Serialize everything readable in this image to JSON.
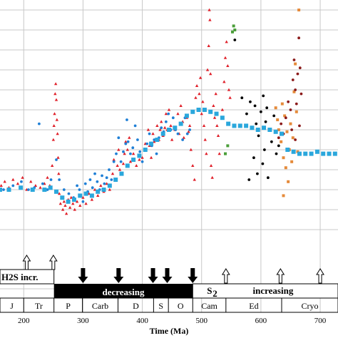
{
  "chart_data": {
    "type": "scatter",
    "xlabel": "Time (Ma)",
    "ylabel": "",
    "xlim": [
      160,
      730
    ],
    "ylim": [
      0,
      12.5
    ],
    "grid": true,
    "x_ticks": [
      200,
      300,
      400,
      500,
      600,
      700
    ],
    "series": [
      {
        "color": "#e0202a",
        "marker": "triangle",
        "points": [
          [
            162,
            3.2
          ],
          [
            168,
            3.4
          ],
          [
            175,
            3.1
          ],
          [
            182,
            3.5
          ],
          [
            190,
            3.3
          ],
          [
            198,
            3.6
          ],
          [
            205,
            3.0
          ],
          [
            212,
            3.4
          ],
          [
            220,
            3.2
          ],
          [
            228,
            3.1
          ],
          [
            235,
            3.3
          ],
          [
            240,
            3.6
          ],
          [
            244,
            3.2
          ],
          [
            248,
            4.2
          ],
          [
            250,
            5.5
          ],
          [
            251,
            6.2
          ],
          [
            252,
            6.8
          ],
          [
            253,
            7.8
          ],
          [
            254,
            8.3
          ],
          [
            255,
            7.5
          ],
          [
            256,
            6.5
          ],
          [
            257,
            5.8
          ],
          [
            258,
            4.6
          ],
          [
            259,
            3.8
          ],
          [
            260,
            2.8
          ],
          [
            262,
            2.3
          ],
          [
            264,
            2.6
          ],
          [
            266,
            2.0
          ],
          [
            268,
            2.4
          ],
          [
            270,
            2.2
          ],
          [
            272,
            1.8
          ],
          [
            275,
            2.5
          ],
          [
            278,
            2.1
          ],
          [
            280,
            2.6
          ],
          [
            283,
            2.3
          ],
          [
            286,
            2.0
          ],
          [
            290,
            2.4
          ],
          [
            295,
            2.2
          ],
          [
            300,
            2.6
          ],
          [
            305,
            2.3
          ],
          [
            310,
            2.8
          ],
          [
            315,
            2.5
          ],
          [
            320,
            3.0
          ],
          [
            325,
            2.7
          ],
          [
            330,
            3.2
          ],
          [
            335,
            2.9
          ],
          [
            340,
            3.3
          ],
          [
            345,
            3.0
          ],
          [
            350,
            3.8
          ],
          [
            352,
            4.5
          ],
          [
            355,
            3.5
          ],
          [
            358,
            4.2
          ],
          [
            360,
            5.0
          ],
          [
            362,
            4.0
          ],
          [
            365,
            3.8
          ],
          [
            368,
            4.3
          ],
          [
            370,
            4.8
          ],
          [
            372,
            5.4
          ],
          [
            375,
            5.0
          ],
          [
            378,
            5.6
          ],
          [
            380,
            4.4
          ],
          [
            385,
            4.8
          ],
          [
            390,
            4.2
          ],
          [
            395,
            4.5
          ],
          [
            400,
            4.6
          ],
          [
            405,
            5.3
          ],
          [
            410,
            6.0
          ],
          [
            412,
            5.2
          ],
          [
            415,
            4.6
          ],
          [
            418,
            5.8
          ],
          [
            420,
            5.4
          ],
          [
            425,
            6.2
          ],
          [
            428,
            5.5
          ],
          [
            430,
            6.0
          ],
          [
            432,
            6.4
          ],
          [
            435,
            5.7
          ],
          [
            438,
            6.1
          ],
          [
            440,
            6.8
          ],
          [
            442,
            6.0
          ],
          [
            445,
            7.0
          ],
          [
            448,
            6.2
          ],
          [
            450,
            5.5
          ],
          [
            455,
            6.0
          ],
          [
            460,
            6.8
          ],
          [
            462,
            5.8
          ],
          [
            465,
            7.2
          ],
          [
            468,
            6.4
          ],
          [
            470,
            5.6
          ],
          [
            475,
            6.6
          ],
          [
            478,
            5.9
          ],
          [
            480,
            6.2
          ],
          [
            482,
            5.0
          ],
          [
            485,
            4.2
          ],
          [
            488,
            3.5
          ],
          [
            490,
            7.6
          ],
          [
            492,
            8.2
          ],
          [
            494,
            7.0
          ],
          [
            496,
            7.8
          ],
          [
            498,
            8.6
          ],
          [
            500,
            6.8
          ],
          [
            502,
            7.4
          ],
          [
            504,
            6.2
          ],
          [
            506,
            5.5
          ],
          [
            508,
            4.8
          ],
          [
            510,
            9.0
          ],
          [
            512,
            10.2
          ],
          [
            513,
            12.0
          ],
          [
            514,
            11.5
          ],
          [
            515,
            8.8
          ],
          [
            516,
            4.2
          ],
          [
            518,
            3.6
          ],
          [
            520,
            7.2
          ],
          [
            522,
            6.6
          ],
          [
            524,
            7.8
          ],
          [
            526,
            6.2
          ],
          [
            528,
            5.7
          ],
          [
            530,
            4.8
          ],
          [
            535,
            7.0
          ],
          [
            538,
            8.4
          ],
          [
            540,
            9.6
          ],
          [
            542,
            10.4
          ],
          [
            544,
            9.2
          ],
          [
            546,
            8.0
          ],
          [
            548,
            7.6
          ]
        ]
      },
      {
        "color": "#1f7fd6",
        "marker": "dot",
        "points": [
          [
            166,
            3.0
          ],
          [
            182,
            3.2
          ],
          [
            196,
            3.4
          ],
          [
            208,
            3.0
          ],
          [
            218,
            3.1
          ],
          [
            226,
            6.3
          ],
          [
            232,
            3.3
          ],
          [
            240,
            3.0
          ],
          [
            246,
            3.5
          ],
          [
            255,
            4.5
          ],
          [
            260,
            3.5
          ],
          [
            268,
            3.0
          ],
          [
            276,
            2.8
          ],
          [
            284,
            2.6
          ],
          [
            290,
            3.2
          ],
          [
            294,
            3.0
          ],
          [
            300,
            2.4
          ],
          [
            304,
            3.3
          ],
          [
            308,
            2.9
          ],
          [
            312,
            3.5
          ],
          [
            316,
            3.1
          ],
          [
            320,
            3.8
          ],
          [
            324,
            3.4
          ],
          [
            328,
            3.0
          ],
          [
            332,
            3.7
          ],
          [
            336,
            3.3
          ],
          [
            340,
            3.6
          ],
          [
            344,
            4.0
          ],
          [
            348,
            3.5
          ],
          [
            352,
            4.4
          ],
          [
            356,
            4.8
          ],
          [
            360,
            5.6
          ],
          [
            364,
            4.4
          ],
          [
            368,
            4.9
          ],
          [
            372,
            5.3
          ],
          [
            374,
            6.5
          ],
          [
            376,
            5.4
          ],
          [
            380,
            4.8
          ],
          [
            384,
            5.1
          ],
          [
            388,
            6.2
          ],
          [
            392,
            5.5
          ],
          [
            396,
            4.9
          ],
          [
            400,
            4.4
          ],
          [
            404,
            5.0
          ],
          [
            408,
            5.3
          ],
          [
            412,
            5.8
          ],
          [
            416,
            5.2
          ],
          [
            420,
            5.5
          ],
          [
            424,
            4.8
          ],
          [
            428,
            5.6
          ],
          [
            432,
            6.1
          ],
          [
            436,
            5.9
          ],
          [
            440,
            6.4
          ],
          [
            444,
            6.8
          ],
          [
            448,
            6.0
          ],
          [
            452,
            6.6
          ],
          [
            456,
            6.0
          ],
          [
            460,
            5.8
          ],
          [
            464,
            6.3
          ],
          [
            468,
            5.5
          ],
          [
            472,
            6.6
          ],
          [
            476,
            5.8
          ],
          [
            480,
            6.0
          ]
        ]
      },
      {
        "color": "#000000",
        "marker": "dot",
        "points": [
          [
            556,
            10.5
          ],
          [
            568,
            7.6
          ],
          [
            576,
            6.8
          ],
          [
            582,
            7.4
          ],
          [
            586,
            6.1
          ],
          [
            588,
            4.6
          ],
          [
            590,
            7.2
          ],
          [
            592,
            6.3
          ],
          [
            596,
            5.7
          ],
          [
            600,
            6.9
          ],
          [
            604,
            7.7
          ],
          [
            606,
            5.0
          ],
          [
            608,
            6.4
          ],
          [
            610,
            7.1
          ],
          [
            614,
            6.0
          ],
          [
            618,
            5.4
          ],
          [
            622,
            6.7
          ],
          [
            626,
            4.8
          ],
          [
            630,
            5.2
          ],
          [
            594,
            3.8
          ],
          [
            612,
            3.6
          ],
          [
            603,
            4.3
          ],
          [
            580,
            3.5
          ]
        ]
      },
      {
        "color": "#e58a3a",
        "marker": "square",
        "points": [
          [
            625,
            7.1
          ],
          [
            628,
            6.5
          ],
          [
            630,
            6.0
          ],
          [
            634,
            5.4
          ],
          [
            636,
            7.3
          ],
          [
            638,
            4.6
          ],
          [
            640,
            6.7
          ],
          [
            642,
            4.1
          ],
          [
            644,
            5.9
          ],
          [
            646,
            3.4
          ],
          [
            648,
            5.0
          ],
          [
            650,
            6.3
          ],
          [
            652,
            4.4
          ],
          [
            654,
            5.6
          ],
          [
            656,
            7.9
          ],
          [
            658,
            9.3
          ],
          [
            660,
            6.9
          ],
          [
            662,
            4.9
          ],
          [
            664,
            12.0
          ],
          [
            638,
            2.7
          ]
        ]
      },
      {
        "color": "#8b1a1a",
        "marker": "dot",
        "points": [
          [
            630,
            5.6
          ],
          [
            634,
            6.3
          ],
          [
            638,
            5.8
          ],
          [
            642,
            6.6
          ],
          [
            646,
            7.4
          ],
          [
            650,
            7.0
          ],
          [
            652,
            6.0
          ],
          [
            654,
            8.5
          ],
          [
            656,
            9.5
          ],
          [
            658,
            8.0
          ],
          [
            660,
            7.3
          ],
          [
            662,
            8.8
          ],
          [
            664,
            10.6
          ],
          [
            666,
            9.1
          ],
          [
            668,
            7.8
          ],
          [
            665,
            6.2
          ],
          [
            658,
            5.5
          ]
        ]
      },
      {
        "color": "#4b9e3a",
        "marker": "square",
        "points": [
          [
            552,
            10.9
          ],
          [
            554,
            11.2
          ],
          [
            556,
            11.0
          ],
          [
            540,
            4.8
          ],
          [
            544,
            5.2
          ]
        ]
      }
    ],
    "trend": {
      "color": "#2aa7dc",
      "points": [
        [
          160,
          3.0
        ],
        [
          175,
          3.0
        ],
        [
          195,
          3.1
        ],
        [
          215,
          3.0
        ],
        [
          235,
          3.0
        ],
        [
          245,
          3.1
        ],
        [
          255,
          2.9
        ],
        [
          265,
          2.6
        ],
        [
          275,
          2.4
        ],
        [
          285,
          2.5
        ],
        [
          295,
          2.7
        ],
        [
          305,
          2.8
        ],
        [
          315,
          2.7
        ],
        [
          325,
          2.9
        ],
        [
          335,
          3.0
        ],
        [
          345,
          3.2
        ],
        [
          355,
          3.5
        ],
        [
          365,
          3.8
        ],
        [
          375,
          4.2
        ],
        [
          385,
          4.5
        ],
        [
          395,
          4.7
        ],
        [
          405,
          5.0
        ],
        [
          415,
          5.3
        ],
        [
          425,
          5.5
        ],
        [
          435,
          5.8
        ],
        [
          445,
          6.0
        ],
        [
          455,
          6.1
        ],
        [
          465,
          6.3
        ],
        [
          475,
          6.7
        ],
        [
          485,
          6.9
        ],
        [
          495,
          7.0
        ],
        [
          505,
          7.0
        ],
        [
          515,
          6.9
        ],
        [
          525,
          6.8
        ],
        [
          535,
          6.6
        ],
        [
          545,
          6.3
        ],
        [
          555,
          6.2
        ],
        [
          565,
          6.2
        ],
        [
          575,
          6.2
        ],
        [
          585,
          6.1
        ],
        [
          595,
          6.0
        ],
        [
          605,
          6.1
        ],
        [
          615,
          6.0
        ],
        [
          625,
          5.9
        ],
        [
          635,
          5.8
        ],
        [
          645,
          5.0
        ],
        [
          655,
          4.9
        ],
        [
          665,
          4.8
        ],
        [
          675,
          4.8
        ],
        [
          685,
          4.8
        ],
        [
          695,
          4.9
        ],
        [
          705,
          4.8
        ],
        [
          715,
          4.8
        ],
        [
          725,
          4.8
        ]
      ]
    },
    "annotations": {
      "h2s_label": "H2S incr.",
      "decreasing_label": "decreasing",
      "s2_label": "S",
      "s2_sub": "2",
      "increasing_label": "increasing",
      "down_arrows_x": [
        300,
        360,
        418,
        442,
        485
      ],
      "up_arrows_x_left": [
        205,
        250
      ],
      "up_arrows_x_right": [
        541,
        633,
        700
      ]
    },
    "periods": [
      {
        "label": "J",
        "from": 160,
        "to": 200
      },
      {
        "label": "Tr",
        "from": 200,
        "to": 251
      },
      {
        "label": "P",
        "from": 251,
        "to": 299
      },
      {
        "label": "Carb",
        "from": 299,
        "to": 359
      },
      {
        "label": "D",
        "from": 359,
        "to": 419
      },
      {
        "label": "S",
        "from": 419,
        "to": 444
      },
      {
        "label": "O",
        "from": 444,
        "to": 485
      },
      {
        "label": "Cam",
        "from": 485,
        "to": 541
      },
      {
        "label": "Ed",
        "from": 541,
        "to": 635
      },
      {
        "label": "Cryo",
        "from": 635,
        "to": 730
      }
    ]
  }
}
